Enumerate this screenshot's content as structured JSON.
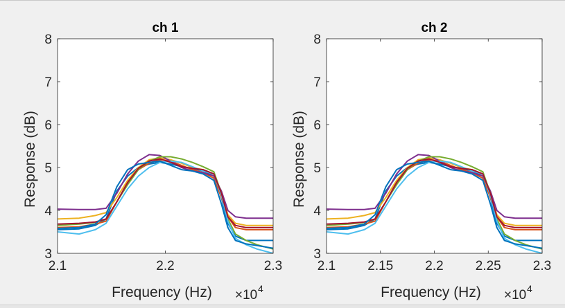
{
  "chart_data": [
    {
      "type": "line",
      "title": "ch 1",
      "xlabel": "Frequency (Hz)",
      "ylabel": "Response (dB)",
      "x_exponent_label": "×10",
      "x_exponent_power": "4",
      "xlim": [
        2.1,
        2.3
      ],
      "ylim": [
        3,
        8
      ],
      "xticks": [
        2.1,
        2.2,
        2.3
      ],
      "xtick_labels": [
        "2.1",
        "2.2",
        "2.3"
      ],
      "yticks": [
        3,
        4,
        5,
        6,
        7,
        8
      ],
      "ytick_labels": [
        "3",
        "4",
        "5",
        "6",
        "7",
        "8"
      ],
      "grid": false,
      "series": [
        {
          "color": "#0072BD",
          "x": [
            2.1,
            2.12,
            2.135,
            2.145,
            2.155,
            2.165,
            2.175,
            2.185,
            2.195,
            2.205,
            2.215,
            2.225,
            2.235,
            2.245,
            2.252,
            2.258,
            2.265,
            2.275,
            2.285,
            2.3
          ],
          "y": [
            3.55,
            3.57,
            3.65,
            3.8,
            4.45,
            4.8,
            5.0,
            5.08,
            5.12,
            5.08,
            5.02,
            4.98,
            4.92,
            4.8,
            4.3,
            3.7,
            3.4,
            3.3,
            3.3,
            3.3
          ]
        },
        {
          "color": "#D95319",
          "x": [
            2.1,
            2.12,
            2.135,
            2.145,
            2.155,
            2.165,
            2.175,
            2.185,
            2.195,
            2.205,
            2.215,
            2.225,
            2.235,
            2.245,
            2.252,
            2.258,
            2.265,
            2.275,
            2.285,
            2.3
          ],
          "y": [
            3.6,
            3.62,
            3.68,
            3.75,
            4.2,
            4.65,
            4.95,
            5.1,
            5.18,
            5.15,
            5.05,
            4.95,
            4.88,
            4.75,
            4.3,
            3.85,
            3.6,
            3.55,
            3.55,
            3.55
          ]
        },
        {
          "color": "#EDB120",
          "x": [
            2.1,
            2.12,
            2.135,
            2.145,
            2.155,
            2.165,
            2.175,
            2.185,
            2.195,
            2.205,
            2.215,
            2.225,
            2.235,
            2.245,
            2.252,
            2.258,
            2.265,
            2.275,
            2.285,
            2.3
          ],
          "y": [
            3.8,
            3.82,
            3.88,
            3.95,
            4.3,
            4.7,
            5.0,
            5.18,
            5.22,
            5.18,
            5.1,
            5.0,
            4.95,
            4.85,
            4.4,
            3.9,
            3.7,
            3.65,
            3.65,
            3.65
          ]
        },
        {
          "color": "#7E2F8E",
          "x": [
            2.1,
            2.12,
            2.135,
            2.145,
            2.155,
            2.165,
            2.175,
            2.185,
            2.195,
            2.205,
            2.215,
            2.225,
            2.235,
            2.245,
            2.252,
            2.258,
            2.265,
            2.275,
            2.285,
            2.3
          ],
          "y": [
            4.03,
            4.02,
            4.02,
            4.05,
            4.4,
            4.85,
            5.15,
            5.3,
            5.28,
            5.15,
            5.0,
            4.92,
            4.88,
            4.8,
            4.45,
            4.0,
            3.85,
            3.82,
            3.82,
            3.82
          ]
        },
        {
          "color": "#77AC30",
          "x": [
            2.1,
            2.12,
            2.135,
            2.145,
            2.155,
            2.165,
            2.175,
            2.185,
            2.195,
            2.205,
            2.215,
            2.225,
            2.235,
            2.245,
            2.252,
            2.258,
            2.265,
            2.275,
            2.285,
            2.3
          ],
          "y": [
            3.65,
            3.68,
            3.72,
            3.8,
            4.2,
            4.6,
            4.95,
            5.15,
            5.25,
            5.25,
            5.2,
            5.12,
            5.02,
            4.9,
            4.4,
            3.8,
            3.45,
            3.3,
            3.2,
            3.1
          ]
        },
        {
          "color": "#4DBEEE",
          "x": [
            2.1,
            2.12,
            2.135,
            2.145,
            2.155,
            2.165,
            2.175,
            2.185,
            2.195,
            2.205,
            2.215,
            2.225,
            2.235,
            2.245,
            2.252,
            2.258,
            2.265,
            2.275,
            2.285,
            2.3
          ],
          "y": [
            3.5,
            3.45,
            3.55,
            3.7,
            4.1,
            4.5,
            4.8,
            5.0,
            5.12,
            5.15,
            5.12,
            5.02,
            4.92,
            4.85,
            4.35,
            3.75,
            3.35,
            3.2,
            3.1,
            3.0
          ]
        },
        {
          "color": "#A2142F",
          "x": [
            2.1,
            2.12,
            2.135,
            2.145,
            2.155,
            2.165,
            2.175,
            2.185,
            2.195,
            2.205,
            2.215,
            2.225,
            2.235,
            2.245,
            2.252,
            2.258,
            2.265,
            2.275,
            2.285,
            2.3
          ],
          "y": [
            3.68,
            3.7,
            3.73,
            3.8,
            4.2,
            4.65,
            4.98,
            5.15,
            5.2,
            5.12,
            5.02,
            4.98,
            4.95,
            4.85,
            4.4,
            3.85,
            3.65,
            3.6,
            3.6,
            3.6
          ]
        },
        {
          "color": "#0072BD",
          "x": [
            2.1,
            2.12,
            2.135,
            2.145,
            2.155,
            2.165,
            2.175,
            2.185,
            2.195,
            2.205,
            2.215,
            2.225,
            2.235,
            2.245,
            2.252,
            2.258,
            2.265,
            2.275,
            2.285,
            2.3
          ],
          "y": [
            3.58,
            3.6,
            3.68,
            3.9,
            4.55,
            4.95,
            5.08,
            5.12,
            5.15,
            5.05,
            4.95,
            4.92,
            4.85,
            4.7,
            4.15,
            3.6,
            3.3,
            3.22,
            3.18,
            3.12
          ]
        }
      ]
    },
    {
      "type": "line",
      "title": "ch 2",
      "xlabel": "Frequency (Hz)",
      "ylabel": "Response (dB)",
      "x_exponent_label": "×10",
      "x_exponent_power": "4",
      "xlim": [
        2.1,
        2.3
      ],
      "ylim": [
        3,
        8
      ],
      "xticks": [
        2.1,
        2.15,
        2.2,
        2.25,
        2.3
      ],
      "xtick_labels": [
        "2.1",
        "2.15",
        "2.2",
        "2.25",
        "2.3"
      ],
      "yticks": [
        3,
        4,
        5,
        6,
        7,
        8
      ],
      "ytick_labels": [
        "3",
        "4",
        "5",
        "6",
        "7",
        "8"
      ],
      "grid": false,
      "series": [
        {
          "color": "#0072BD",
          "x": [
            2.1,
            2.12,
            2.135,
            2.145,
            2.155,
            2.165,
            2.175,
            2.185,
            2.195,
            2.205,
            2.215,
            2.225,
            2.235,
            2.245,
            2.252,
            2.258,
            2.265,
            2.275,
            2.285,
            2.3
          ],
          "y": [
            3.55,
            3.57,
            3.65,
            3.8,
            4.45,
            4.8,
            5.0,
            5.08,
            5.12,
            5.08,
            5.02,
            4.98,
            4.92,
            4.8,
            4.3,
            3.7,
            3.4,
            3.3,
            3.3,
            3.3
          ]
        },
        {
          "color": "#D95319",
          "x": [
            2.1,
            2.12,
            2.135,
            2.145,
            2.155,
            2.165,
            2.175,
            2.185,
            2.195,
            2.205,
            2.215,
            2.225,
            2.235,
            2.245,
            2.252,
            2.258,
            2.265,
            2.275,
            2.285,
            2.3
          ],
          "y": [
            3.6,
            3.62,
            3.68,
            3.75,
            4.2,
            4.65,
            4.95,
            5.1,
            5.18,
            5.15,
            5.05,
            4.95,
            4.88,
            4.75,
            4.3,
            3.85,
            3.6,
            3.55,
            3.55,
            3.55
          ]
        },
        {
          "color": "#EDB120",
          "x": [
            2.1,
            2.12,
            2.135,
            2.145,
            2.155,
            2.165,
            2.175,
            2.185,
            2.195,
            2.205,
            2.215,
            2.225,
            2.235,
            2.245,
            2.252,
            2.258,
            2.265,
            2.275,
            2.285,
            2.3
          ],
          "y": [
            3.8,
            3.82,
            3.88,
            3.95,
            4.3,
            4.7,
            5.0,
            5.18,
            5.22,
            5.18,
            5.1,
            5.0,
            4.95,
            4.85,
            4.4,
            3.9,
            3.7,
            3.65,
            3.65,
            3.65
          ]
        },
        {
          "color": "#7E2F8E",
          "x": [
            2.1,
            2.12,
            2.135,
            2.145,
            2.155,
            2.165,
            2.175,
            2.185,
            2.195,
            2.205,
            2.215,
            2.225,
            2.235,
            2.245,
            2.252,
            2.258,
            2.265,
            2.275,
            2.285,
            2.3
          ],
          "y": [
            4.03,
            4.02,
            4.02,
            4.05,
            4.4,
            4.85,
            5.15,
            5.3,
            5.28,
            5.15,
            5.0,
            4.92,
            4.88,
            4.8,
            4.45,
            4.0,
            3.85,
            3.82,
            3.82,
            3.82
          ]
        },
        {
          "color": "#77AC30",
          "x": [
            2.1,
            2.12,
            2.135,
            2.145,
            2.155,
            2.165,
            2.175,
            2.185,
            2.195,
            2.205,
            2.215,
            2.225,
            2.235,
            2.245,
            2.252,
            2.258,
            2.265,
            2.275,
            2.285,
            2.3
          ],
          "y": [
            3.65,
            3.68,
            3.72,
            3.8,
            4.2,
            4.6,
            4.95,
            5.15,
            5.25,
            5.25,
            5.2,
            5.12,
            5.02,
            4.9,
            4.4,
            3.8,
            3.45,
            3.3,
            3.2,
            3.1
          ]
        },
        {
          "color": "#4DBEEE",
          "x": [
            2.1,
            2.12,
            2.135,
            2.145,
            2.155,
            2.165,
            2.175,
            2.185,
            2.195,
            2.205,
            2.215,
            2.225,
            2.235,
            2.245,
            2.252,
            2.258,
            2.265,
            2.275,
            2.285,
            2.3
          ],
          "y": [
            3.5,
            3.45,
            3.55,
            3.7,
            4.1,
            4.5,
            4.8,
            5.0,
            5.12,
            5.15,
            5.12,
            5.02,
            4.92,
            4.85,
            4.35,
            3.75,
            3.35,
            3.2,
            3.1,
            3.0
          ]
        },
        {
          "color": "#A2142F",
          "x": [
            2.1,
            2.12,
            2.135,
            2.145,
            2.155,
            2.165,
            2.175,
            2.185,
            2.195,
            2.205,
            2.215,
            2.225,
            2.235,
            2.245,
            2.252,
            2.258,
            2.265,
            2.275,
            2.285,
            2.3
          ],
          "y": [
            3.68,
            3.7,
            3.73,
            3.8,
            4.2,
            4.65,
            4.98,
            5.15,
            5.2,
            5.12,
            5.02,
            4.98,
            4.95,
            4.85,
            4.4,
            3.85,
            3.65,
            3.6,
            3.6,
            3.6
          ]
        },
        {
          "color": "#0072BD",
          "x": [
            2.1,
            2.12,
            2.135,
            2.145,
            2.155,
            2.165,
            2.175,
            2.185,
            2.195,
            2.205,
            2.215,
            2.225,
            2.235,
            2.245,
            2.252,
            2.258,
            2.265,
            2.275,
            2.285,
            2.3
          ],
          "y": [
            3.58,
            3.6,
            3.68,
            3.9,
            4.55,
            4.95,
            5.08,
            5.12,
            5.15,
            5.05,
            4.95,
            4.92,
            4.85,
            4.7,
            4.15,
            3.6,
            3.3,
            3.22,
            3.18,
            3.12
          ]
        }
      ]
    }
  ]
}
